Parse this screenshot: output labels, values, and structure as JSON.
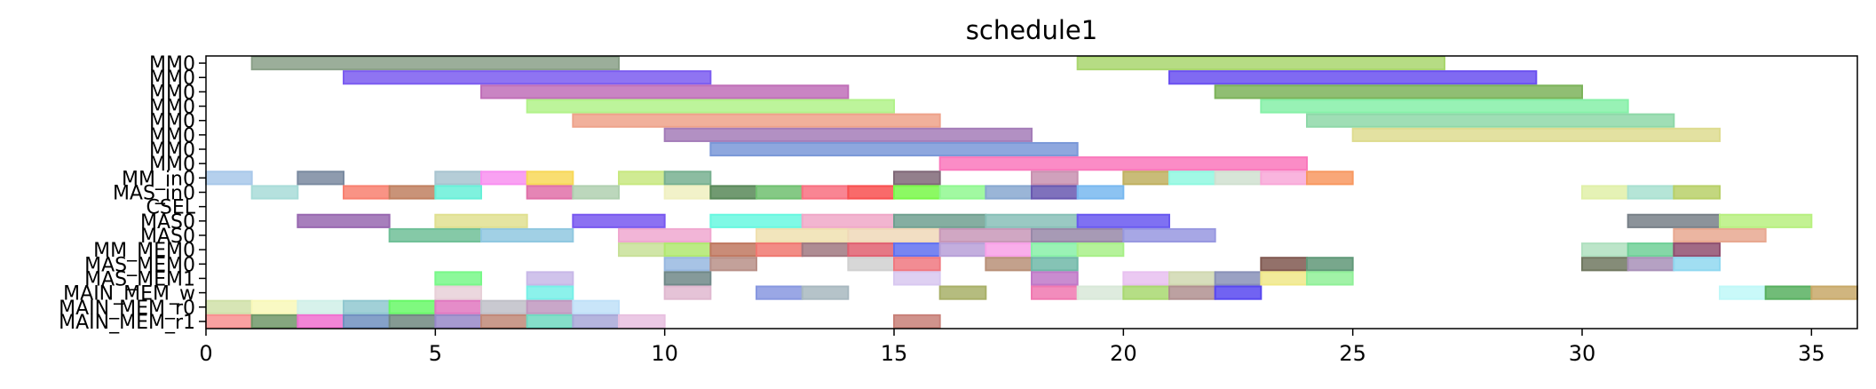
{
  "chart_data": {
    "type": "gantt",
    "title": "schedule1",
    "xlabel": "",
    "ylabel": "",
    "xlim": [
      0,
      36
    ],
    "x_ticks": [
      0,
      5,
      10,
      15,
      20,
      25,
      30,
      35
    ],
    "grid": false,
    "legend": "none",
    "rows": [
      "MM0",
      "MM0",
      "MM0",
      "MM0",
      "MM0",
      "MM0",
      "MM0",
      "MM0",
      "MM_in0",
      "MAS_in0",
      "CSEL",
      "MAS0",
      "MAS0",
      "MM_MEM0",
      "MAS_MEM0",
      "MAS_MEM1",
      "MAIN_MEM_w",
      "MAIN_MEM_r0",
      "MAIN_MEM_r1"
    ],
    "tasks": [
      {
        "row": 0,
        "start": 1,
        "end": 9,
        "color": "#8aa088"
      },
      {
        "row": 0,
        "start": 19,
        "end": 27,
        "color": "#a9d66e"
      },
      {
        "row": 1,
        "start": 3,
        "end": 11,
        "color": "#7b5cf0"
      },
      {
        "row": 1,
        "start": 21,
        "end": 29,
        "color": "#6a50f0"
      },
      {
        "row": 2,
        "start": 6,
        "end": 14,
        "color": "#c06fb8"
      },
      {
        "row": 2,
        "start": 22,
        "end": 30,
        "color": "#7cb35a"
      },
      {
        "row": 3,
        "start": 7,
        "end": 15,
        "color": "#b2f28a"
      },
      {
        "row": 3,
        "start": 23,
        "end": 31,
        "color": "#86f0a8"
      },
      {
        "row": 4,
        "start": 8,
        "end": 16,
        "color": "#eea28a"
      },
      {
        "row": 4,
        "start": 24,
        "end": 32,
        "color": "#8ed8a8"
      },
      {
        "row": 5,
        "start": 10,
        "end": 18,
        "color": "#a47cb8"
      },
      {
        "row": 5,
        "start": 25,
        "end": 33,
        "color": "#dedc90"
      },
      {
        "row": 6,
        "start": 11,
        "end": 19,
        "color": "#7a98d8"
      },
      {
        "row": 7,
        "start": 16,
        "end": 24,
        "color": "#fa78bc"
      },
      {
        "row": 8,
        "start": 0,
        "end": 1,
        "color": "#a8c8ea"
      },
      {
        "row": 8,
        "start": 2,
        "end": 3,
        "color": "#7a8aa0"
      },
      {
        "row": 8,
        "start": 5,
        "end": 6,
        "color": "#a8c4d0"
      },
      {
        "row": 8,
        "start": 6,
        "end": 7,
        "color": "#f890f0"
      },
      {
        "row": 8,
        "start": 7,
        "end": 8,
        "color": "#f8d858"
      },
      {
        "row": 8,
        "start": 9,
        "end": 10,
        "color": "#c8e880"
      },
      {
        "row": 8,
        "start": 10,
        "end": 11,
        "color": "#78b090"
      },
      {
        "row": 8,
        "start": 15,
        "end": 16,
        "color": "#806878"
      },
      {
        "row": 8,
        "start": 18,
        "end": 19,
        "color": "#c890b0"
      },
      {
        "row": 8,
        "start": 20,
        "end": 21,
        "color": "#c0b060"
      },
      {
        "row": 8,
        "start": 21,
        "end": 22,
        "color": "#90f8e0"
      },
      {
        "row": 8,
        "start": 22,
        "end": 23,
        "color": "#d0e0d0"
      },
      {
        "row": 8,
        "start": 23,
        "end": 24,
        "color": "#f8a8d8"
      },
      {
        "row": 8,
        "start": 24,
        "end": 25,
        "color": "#f89860"
      },
      {
        "row": 9,
        "start": 1,
        "end": 2,
        "color": "#a8dcd8"
      },
      {
        "row": 9,
        "start": 3,
        "end": 4,
        "color": "#f88070"
      },
      {
        "row": 9,
        "start": 4,
        "end": 5,
        "color": "#c08060"
      },
      {
        "row": 9,
        "start": 5,
        "end": 6,
        "color": "#68f0d8"
      },
      {
        "row": 9,
        "start": 7,
        "end": 8,
        "color": "#e070a8"
      },
      {
        "row": 9,
        "start": 8,
        "end": 9,
        "color": "#b0d0b0"
      },
      {
        "row": 9,
        "start": 10,
        "end": 11,
        "color": "#f0f0c0"
      },
      {
        "row": 9,
        "start": 11,
        "end": 12,
        "color": "#588858"
      },
      {
        "row": 9,
        "start": 12,
        "end": 13,
        "color": "#70c070"
      },
      {
        "row": 9,
        "start": 13,
        "end": 14,
        "color": "#f87080"
      },
      {
        "row": 9,
        "start": 14,
        "end": 15,
        "color": "#f85050"
      },
      {
        "row": 9,
        "start": 15,
        "end": 16,
        "color": "#78f848"
      },
      {
        "row": 9,
        "start": 16,
        "end": 17,
        "color": "#90f890"
      },
      {
        "row": 9,
        "start": 17,
        "end": 18,
        "color": "#88a8d0"
      },
      {
        "row": 9,
        "start": 18,
        "end": 19,
        "color": "#6858b0"
      },
      {
        "row": 9,
        "start": 19,
        "end": 20,
        "color": "#78b8f0"
      },
      {
        "row": 9,
        "start": 30,
        "end": 31,
        "color": "#e0f0a8"
      },
      {
        "row": 9,
        "start": 31,
        "end": 32,
        "color": "#a8e0d0"
      },
      {
        "row": 9,
        "start": 32,
        "end": 33,
        "color": "#b8d068"
      },
      {
        "row": 11,
        "start": 2,
        "end": 4,
        "color": "#9868b0"
      },
      {
        "row": 11,
        "start": 5,
        "end": 7,
        "color": "#e0e090"
      },
      {
        "row": 11,
        "start": 8,
        "end": 10,
        "color": "#7858f0"
      },
      {
        "row": 11,
        "start": 11,
        "end": 13,
        "color": "#68f8e0"
      },
      {
        "row": 11,
        "start": 13,
        "end": 15,
        "color": "#f0a8c8"
      },
      {
        "row": 11,
        "start": 15,
        "end": 17,
        "color": "#70a090"
      },
      {
        "row": 11,
        "start": 17,
        "end": 19,
        "color": "#88c0b8"
      },
      {
        "row": 11,
        "start": 19,
        "end": 21,
        "color": "#6858f0"
      },
      {
        "row": 11,
        "start": 31,
        "end": 33,
        "color": "#788088"
      },
      {
        "row": 11,
        "start": 33,
        "end": 35,
        "color": "#b8f080"
      },
      {
        "row": 12,
        "start": 4,
        "end": 6,
        "color": "#70c098"
      },
      {
        "row": 12,
        "start": 6,
        "end": 8,
        "color": "#90c8e0"
      },
      {
        "row": 12,
        "start": 9,
        "end": 11,
        "color": "#f0a8d0"
      },
      {
        "row": 12,
        "start": 12,
        "end": 14,
        "color": "#f0e0b0"
      },
      {
        "row": 12,
        "start": 14,
        "end": 16,
        "color": "#f0d8b8"
      },
      {
        "row": 12,
        "start": 16,
        "end": 18,
        "color": "#c898b8"
      },
      {
        "row": 12,
        "start": 18,
        "end": 20,
        "color": "#9888a8"
      },
      {
        "row": 12,
        "start": 20,
        "end": 22,
        "color": "#9898e0"
      },
      {
        "row": 12,
        "start": 32,
        "end": 34,
        "color": "#e8a890"
      },
      {
        "row": 13,
        "start": 9,
        "end": 10,
        "color": "#c8e098"
      },
      {
        "row": 13,
        "start": 10,
        "end": 11,
        "color": "#b0e870"
      },
      {
        "row": 13,
        "start": 11,
        "end": 12,
        "color": "#c07860"
      },
      {
        "row": 13,
        "start": 12,
        "end": 13,
        "color": "#f07870"
      },
      {
        "row": 13,
        "start": 13,
        "end": 14,
        "color": "#a07880"
      },
      {
        "row": 13,
        "start": 14,
        "end": 15,
        "color": "#e06070"
      },
      {
        "row": 13,
        "start": 15,
        "end": 16,
        "color": "#6070f0"
      },
      {
        "row": 13,
        "start": 16,
        "end": 17,
        "color": "#b8a0d8"
      },
      {
        "row": 13,
        "start": 17,
        "end": 18,
        "color": "#f8a0e8"
      },
      {
        "row": 13,
        "start": 18,
        "end": 19,
        "color": "#88f0a8"
      },
      {
        "row": 13,
        "start": 19,
        "end": 20,
        "color": "#a8f088"
      },
      {
        "row": 13,
        "start": 30,
        "end": 31,
        "color": "#b0e0c0"
      },
      {
        "row": 13,
        "start": 31,
        "end": 32,
        "color": "#70d098"
      },
      {
        "row": 13,
        "start": 32,
        "end": 33,
        "color": "#905070"
      },
      {
        "row": 14,
        "start": 10,
        "end": 11,
        "color": "#98b8e0"
      },
      {
        "row": 14,
        "start": 11,
        "end": 12,
        "color": "#b89088"
      },
      {
        "row": 14,
        "start": 14,
        "end": 15,
        "color": "#d0d0d0"
      },
      {
        "row": 14,
        "start": 15,
        "end": 16,
        "color": "#f07880"
      },
      {
        "row": 14,
        "start": 17,
        "end": 18,
        "color": "#b89078"
      },
      {
        "row": 14,
        "start": 18,
        "end": 19,
        "color": "#70b8a8"
      },
      {
        "row": 14,
        "start": 23,
        "end": 24,
        "color": "#805850"
      },
      {
        "row": 14,
        "start": 24,
        "end": 25,
        "color": "#609878"
      },
      {
        "row": 14,
        "start": 30,
        "end": 31,
        "color": "#707860"
      },
      {
        "row": 14,
        "start": 31,
        "end": 32,
        "color": "#a890b8"
      },
      {
        "row": 14,
        "start": 32,
        "end": 33,
        "color": "#90d8f0"
      },
      {
        "row": 15,
        "start": 5,
        "end": 6,
        "color": "#78f888"
      },
      {
        "row": 15,
        "start": 7,
        "end": 8,
        "color": "#c8b8e8"
      },
      {
        "row": 15,
        "start": 10,
        "end": 11,
        "color": "#708888"
      },
      {
        "row": 15,
        "start": 15,
        "end": 16,
        "color": "#d8c8f0"
      },
      {
        "row": 15,
        "start": 18,
        "end": 19,
        "color": "#c078c8"
      },
      {
        "row": 15,
        "start": 20,
        "end": 21,
        "color": "#e8c0f0"
      },
      {
        "row": 15,
        "start": 21,
        "end": 22,
        "color": "#d0d8b0"
      },
      {
        "row": 15,
        "start": 22,
        "end": 23,
        "color": "#8890b8"
      },
      {
        "row": 15,
        "start": 23,
        "end": 24,
        "color": "#f0e888"
      },
      {
        "row": 15,
        "start": 24,
        "end": 25,
        "color": "#90f098"
      },
      {
        "row": 16,
        "start": 5,
        "end": 6,
        "color": "#e8d0d8"
      },
      {
        "row": 16,
        "start": 7,
        "end": 8,
        "color": "#78f0e8"
      },
      {
        "row": 16,
        "start": 10,
        "end": 11,
        "color": "#e0b8d0"
      },
      {
        "row": 16,
        "start": 12,
        "end": 13,
        "color": "#8898e0"
      },
      {
        "row": 16,
        "start": 13,
        "end": 14,
        "color": "#a8b8c0"
      },
      {
        "row": 16,
        "start": 16,
        "end": 17,
        "color": "#a8b068"
      },
      {
        "row": 16,
        "start": 18,
        "end": 19,
        "color": "#f078b0"
      },
      {
        "row": 16,
        "start": 19,
        "end": 20,
        "color": "#d8e8d8"
      },
      {
        "row": 16,
        "start": 20,
        "end": 21,
        "color": "#a8d870"
      },
      {
        "row": 16,
        "start": 21,
        "end": 22,
        "color": "#b09090"
      },
      {
        "row": 16,
        "start": 22,
        "end": 23,
        "color": "#5848f0"
      },
      {
        "row": 16,
        "start": 33,
        "end": 34,
        "color": "#c0f8f8"
      },
      {
        "row": 16,
        "start": 34,
        "end": 35,
        "color": "#58b060"
      },
      {
        "row": 16,
        "start": 35,
        "end": 36,
        "color": "#c8a868"
      },
      {
        "row": 17,
        "start": 0,
        "end": 1,
        "color": "#d0e0a8"
      },
      {
        "row": 17,
        "start": 1,
        "end": 2,
        "color": "#f8f8b8"
      },
      {
        "row": 17,
        "start": 2,
        "end": 3,
        "color": "#d0f0e8"
      },
      {
        "row": 17,
        "start": 3,
        "end": 4,
        "color": "#90c8d0"
      },
      {
        "row": 17,
        "start": 4,
        "end": 5,
        "color": "#68f868"
      },
      {
        "row": 17,
        "start": 5,
        "end": 6,
        "color": "#e078c0"
      },
      {
        "row": 17,
        "start": 6,
        "end": 7,
        "color": "#c0c0c8"
      },
      {
        "row": 17,
        "start": 7,
        "end": 8,
        "color": "#c098c0"
      },
      {
        "row": 17,
        "start": 8,
        "end": 9,
        "color": "#c0e0f8"
      },
      {
        "row": 18,
        "start": 0,
        "end": 1,
        "color": "#f89090"
      },
      {
        "row": 18,
        "start": 1,
        "end": 2,
        "color": "#709868"
      },
      {
        "row": 18,
        "start": 2,
        "end": 3,
        "color": "#f070d0"
      },
      {
        "row": 18,
        "start": 3,
        "end": 4,
        "color": "#7090c0"
      },
      {
        "row": 18,
        "start": 4,
        "end": 5,
        "color": "#708880"
      },
      {
        "row": 18,
        "start": 5,
        "end": 6,
        "color": "#9888c8"
      },
      {
        "row": 18,
        "start": 6,
        "end": 7,
        "color": "#c08878"
      },
      {
        "row": 18,
        "start": 7,
        "end": 8,
        "color": "#70d8c0"
      },
      {
        "row": 18,
        "start": 8,
        "end": 9,
        "color": "#a8a8d8"
      },
      {
        "row": 18,
        "start": 9,
        "end": 10,
        "color": "#e8c0e0"
      },
      {
        "row": 18,
        "start": 15,
        "end": 16,
        "color": "#c88078"
      }
    ]
  }
}
